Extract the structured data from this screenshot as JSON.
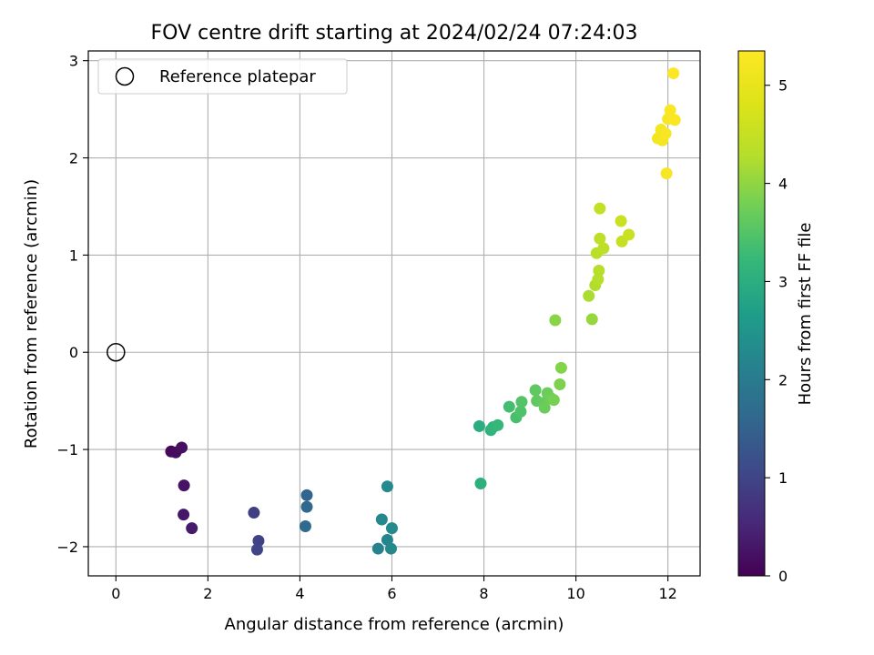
{
  "chart_data": {
    "type": "scatter",
    "title": "FOV centre drift starting at 2024/02/24 07:24:03",
    "xlabel": "Angular distance from reference (arcmin)",
    "ylabel": "Rotation from reference (arcmin)",
    "xlim": [
      -0.6,
      12.7
    ],
    "ylim": [
      -2.3,
      3.1
    ],
    "xticks": [
      0,
      2,
      4,
      6,
      8,
      10,
      12
    ],
    "yticks": [
      -2,
      -1,
      0,
      1,
      2,
      3
    ],
    "x_tick_labels": [
      "0",
      "2",
      "4",
      "6",
      "8",
      "10",
      "12"
    ],
    "y_tick_labels": [
      "−2",
      "−1",
      "0",
      "1",
      "2",
      "3"
    ],
    "grid": true,
    "legend": {
      "position": "top-left",
      "entries": [
        {
          "label": "Reference platepar",
          "marker": "open-circle"
        }
      ]
    },
    "reference_point": {
      "x": 0,
      "y": 0
    },
    "colorbar": {
      "label": "Hours from first FF file",
      "colormap": "viridis",
      "range": [
        0,
        5.35
      ],
      "ticks": [
        0,
        1,
        2,
        3,
        4,
        5
      ],
      "tick_labels": [
        "0",
        "1",
        "2",
        "3",
        "4",
        "5"
      ]
    },
    "points": [
      {
        "x": 1.2,
        "y": -1.02,
        "c": 0.1
      },
      {
        "x": 1.3,
        "y": -1.03,
        "c": 0.15
      },
      {
        "x": 1.43,
        "y": -0.98,
        "c": 0.2
      },
      {
        "x": 1.48,
        "y": -1.37,
        "c": 0.25
      },
      {
        "x": 1.47,
        "y": -1.67,
        "c": 0.3
      },
      {
        "x": 1.65,
        "y": -1.81,
        "c": 0.35
      },
      {
        "x": 3.0,
        "y": -1.65,
        "c": 0.9
      },
      {
        "x": 3.1,
        "y": -1.94,
        "c": 0.95
      },
      {
        "x": 3.07,
        "y": -2.03,
        "c": 1.0
      },
      {
        "x": 4.15,
        "y": -1.47,
        "c": 1.55
      },
      {
        "x": 4.15,
        "y": -1.59,
        "c": 1.6
      },
      {
        "x": 4.12,
        "y": -1.79,
        "c": 1.65
      },
      {
        "x": 5.9,
        "y": -1.38,
        "c": 2.3
      },
      {
        "x": 5.78,
        "y": -1.72,
        "c": 2.25
      },
      {
        "x": 6.0,
        "y": -1.81,
        "c": 2.3
      },
      {
        "x": 5.9,
        "y": -1.93,
        "c": 2.2
      },
      {
        "x": 5.7,
        "y": -2.02,
        "c": 2.15
      },
      {
        "x": 5.98,
        "y": -2.02,
        "c": 2.25
      },
      {
        "x": 7.9,
        "y": -0.76,
        "c": 3.0
      },
      {
        "x": 7.93,
        "y": -1.35,
        "c": 3.05
      },
      {
        "x": 8.15,
        "y": -0.8,
        "c": 3.1
      },
      {
        "x": 8.2,
        "y": -0.77,
        "c": 3.15
      },
      {
        "x": 8.3,
        "y": -0.75,
        "c": 3.2
      },
      {
        "x": 8.55,
        "y": -0.56,
        "c": 3.35
      },
      {
        "x": 8.7,
        "y": -0.67,
        "c": 3.4
      },
      {
        "x": 8.8,
        "y": -0.61,
        "c": 3.45
      },
      {
        "x": 8.82,
        "y": -0.51,
        "c": 3.5
      },
      {
        "x": 9.12,
        "y": -0.39,
        "c": 3.6
      },
      {
        "x": 9.15,
        "y": -0.5,
        "c": 3.6
      },
      {
        "x": 9.3,
        "y": -0.52,
        "c": 3.65
      },
      {
        "x": 9.32,
        "y": -0.57,
        "c": 3.7
      },
      {
        "x": 9.38,
        "y": -0.42,
        "c": 3.7
      },
      {
        "x": 9.45,
        "y": -0.47,
        "c": 3.75
      },
      {
        "x": 9.52,
        "y": -0.49,
        "c": 3.8
      },
      {
        "x": 9.65,
        "y": -0.33,
        "c": 3.85
      },
      {
        "x": 9.68,
        "y": -0.16,
        "c": 3.9
      },
      {
        "x": 9.55,
        "y": 0.33,
        "c": 3.95
      },
      {
        "x": 10.35,
        "y": 0.34,
        "c": 4.05
      },
      {
        "x": 10.28,
        "y": 0.58,
        "c": 4.2
      },
      {
        "x": 10.42,
        "y": 0.69,
        "c": 4.25
      },
      {
        "x": 10.48,
        "y": 0.75,
        "c": 4.3
      },
      {
        "x": 10.5,
        "y": 0.84,
        "c": 4.3
      },
      {
        "x": 10.45,
        "y": 1.02,
        "c": 4.35
      },
      {
        "x": 10.6,
        "y": 1.07,
        "c": 4.4
      },
      {
        "x": 10.52,
        "y": 1.17,
        "c": 4.4
      },
      {
        "x": 10.52,
        "y": 1.48,
        "c": 4.45
      },
      {
        "x": 11.0,
        "y": 1.14,
        "c": 4.5
      },
      {
        "x": 11.15,
        "y": 1.21,
        "c": 4.55
      },
      {
        "x": 10.98,
        "y": 1.35,
        "c": 4.55
      },
      {
        "x": 11.78,
        "y": 2.2,
        "c": 5.15
      },
      {
        "x": 11.88,
        "y": 2.18,
        "c": 5.2
      },
      {
        "x": 11.85,
        "y": 2.29,
        "c": 5.2
      },
      {
        "x": 11.95,
        "y": 2.25,
        "c": 5.25
      },
      {
        "x": 12.0,
        "y": 2.4,
        "c": 5.25
      },
      {
        "x": 12.05,
        "y": 2.49,
        "c": 5.3
      },
      {
        "x": 12.15,
        "y": 2.39,
        "c": 5.3
      },
      {
        "x": 11.97,
        "y": 1.84,
        "c": 5.25
      },
      {
        "x": 12.12,
        "y": 2.87,
        "c": 5.35
      }
    ]
  }
}
